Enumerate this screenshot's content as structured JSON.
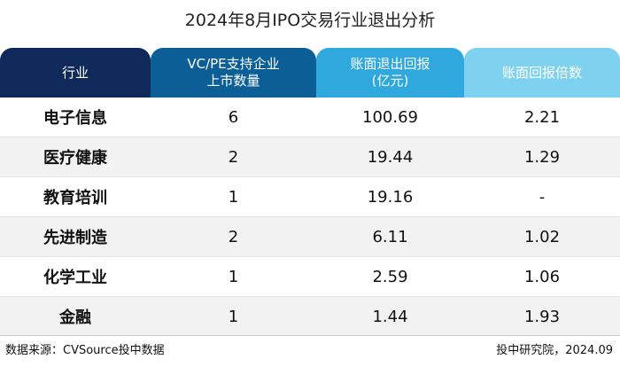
{
  "title": "2024年8月IPO交易行业退出分析",
  "headers": {
    "industry": "行业",
    "count_line1": "VC/PE支持企业",
    "count_line2": "上市数量",
    "book_line1": "账面退出回报",
    "book_line2": "(亿元)",
    "multiple": "账面回报倍数"
  },
  "colors": {
    "industry": "#0f2a5a",
    "count": "#0c5f96",
    "book": "#2ea8dd",
    "multiple": "#7fd1f0"
  },
  "rows": [
    {
      "industry": "电子信息",
      "count": "6",
      "book": "100.69",
      "multiple": "2.21"
    },
    {
      "industry": "医疗健康",
      "count": "2",
      "book": "19.44",
      "multiple": "1.29"
    },
    {
      "industry": "教育培训",
      "count": "1",
      "book": "19.16",
      "multiple": "-"
    },
    {
      "industry": "先进制造",
      "count": "2",
      "book": "6.11",
      "multiple": "1.02"
    },
    {
      "industry": "化学工业",
      "count": "1",
      "book": "2.59",
      "multiple": "1.06"
    },
    {
      "industry": "金融",
      "count": "1",
      "book": "1.44",
      "multiple": "1.93"
    }
  ],
  "footer": {
    "source": "数据来源：CVSource投中数据",
    "credit": "投中研究院，2024.09"
  }
}
